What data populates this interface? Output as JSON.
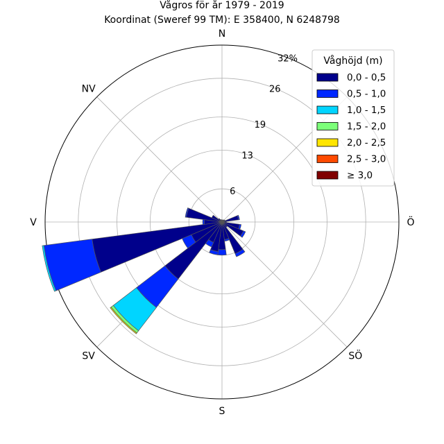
{
  "chart_data": {
    "type": "windrose",
    "title": "Vågros för år 1979 - 2019",
    "subtitle": "Koordinat (Sweref 99 TM): E 358400, N 6248798",
    "direction_labels": [
      "N",
      "Ö",
      "S",
      "V",
      "NV",
      "SÖ",
      "SV"
    ],
    "direction_angles": [
      0,
      90,
      180,
      270,
      315,
      135,
      225
    ],
    "radial_ticks": [
      {
        "value": 6,
        "label": "6"
      },
      {
        "value": 13,
        "label": "13"
      },
      {
        "value": 19,
        "label": "19"
      },
      {
        "value": 26,
        "label": "26"
      },
      {
        "value": 32,
        "label": "32%"
      }
    ],
    "rmax": 32,
    "grid": true,
    "legend_placement": "top-right",
    "legend": {
      "title": "Våghöjd (m)",
      "bins": [
        "0,0 - 0,5",
        "0,5 - 1,0",
        "1,0 - 1,5",
        "1,5 - 2,0",
        "2,0 - 2,5",
        "2,5 - 3,0",
        "≥ 3,0"
      ],
      "colors": [
        "#00008b",
        "#0028ff",
        "#00d5ff",
        "#7cff79",
        "#ffe500",
        "#ff4a00",
        "#800000"
      ]
    },
    "sector_width_deg": 15,
    "sectors": [
      {
        "direction": 0,
        "values": [
          0.4,
          0,
          0,
          0,
          0,
          0,
          0
        ]
      },
      {
        "direction": 15,
        "values": [
          0.4,
          0,
          0,
          0,
          0,
          0,
          0
        ]
      },
      {
        "direction": 30,
        "values": [
          0.4,
          0,
          0,
          0,
          0,
          0,
          0
        ]
      },
      {
        "direction": 45,
        "values": [
          0.5,
          0,
          0,
          0,
          0,
          0,
          0
        ]
      },
      {
        "direction": 60,
        "values": [
          0.6,
          0,
          0,
          0,
          0,
          0,
          0
        ]
      },
      {
        "direction": 75,
        "values": [
          3.0,
          0.2,
          0,
          0,
          0,
          0,
          0
        ]
      },
      {
        "direction": 90,
        "values": [
          0.8,
          0,
          0,
          0,
          0,
          0,
          0
        ]
      },
      {
        "direction": 105,
        "values": [
          3.2,
          0.3,
          0,
          0,
          0,
          0,
          0
        ]
      },
      {
        "direction": 120,
        "values": [
          4.2,
          0.4,
          0,
          0,
          0,
          0,
          0
        ]
      },
      {
        "direction": 135,
        "values": [
          1.2,
          0,
          0,
          0,
          0,
          0,
          0
        ]
      },
      {
        "direction": 150,
        "values": [
          6.2,
          0.6,
          0,
          0,
          0,
          0,
          0
        ]
      },
      {
        "direction": 165,
        "values": [
          3.2,
          0.3,
          0,
          0,
          0,
          0,
          0
        ]
      },
      {
        "direction": 180,
        "values": [
          5.0,
          1.0,
          0,
          0,
          0,
          0,
          0
        ]
      },
      {
        "direction": 195,
        "values": [
          5.4,
          0.6,
          0,
          0,
          0,
          0,
          0
        ]
      },
      {
        "direction": 210,
        "values": [
          4.0,
          0.9,
          0,
          0,
          0,
          0,
          0
        ]
      },
      {
        "direction": 225,
        "values": [
          13.0,
          6.5,
          5.3,
          0.5,
          0.2,
          0,
          0
        ]
      },
      {
        "direction": 240,
        "values": [
          6.0,
          1.8,
          0,
          0,
          0,
          0,
          0
        ]
      },
      {
        "direction": 255,
        "values": [
          23.7,
          8.8,
          0.3,
          0,
          0,
          0,
          0
        ]
      },
      {
        "direction": 270,
        "values": [
          3.2,
          0.3,
          0,
          0,
          0,
          0,
          0
        ]
      },
      {
        "direction": 285,
        "values": [
          6.5,
          0.2,
          0,
          0,
          0,
          0,
          0
        ]
      },
      {
        "direction": 300,
        "values": [
          2.0,
          0,
          0,
          0,
          0,
          0,
          0
        ]
      },
      {
        "direction": 315,
        "values": [
          0.8,
          0,
          0,
          0,
          0,
          0,
          0
        ]
      },
      {
        "direction": 330,
        "values": [
          0.5,
          0,
          0,
          0,
          0,
          0,
          0
        ]
      },
      {
        "direction": 345,
        "values": [
          0.4,
          0,
          0,
          0,
          0,
          0,
          0
        ]
      }
    ]
  }
}
